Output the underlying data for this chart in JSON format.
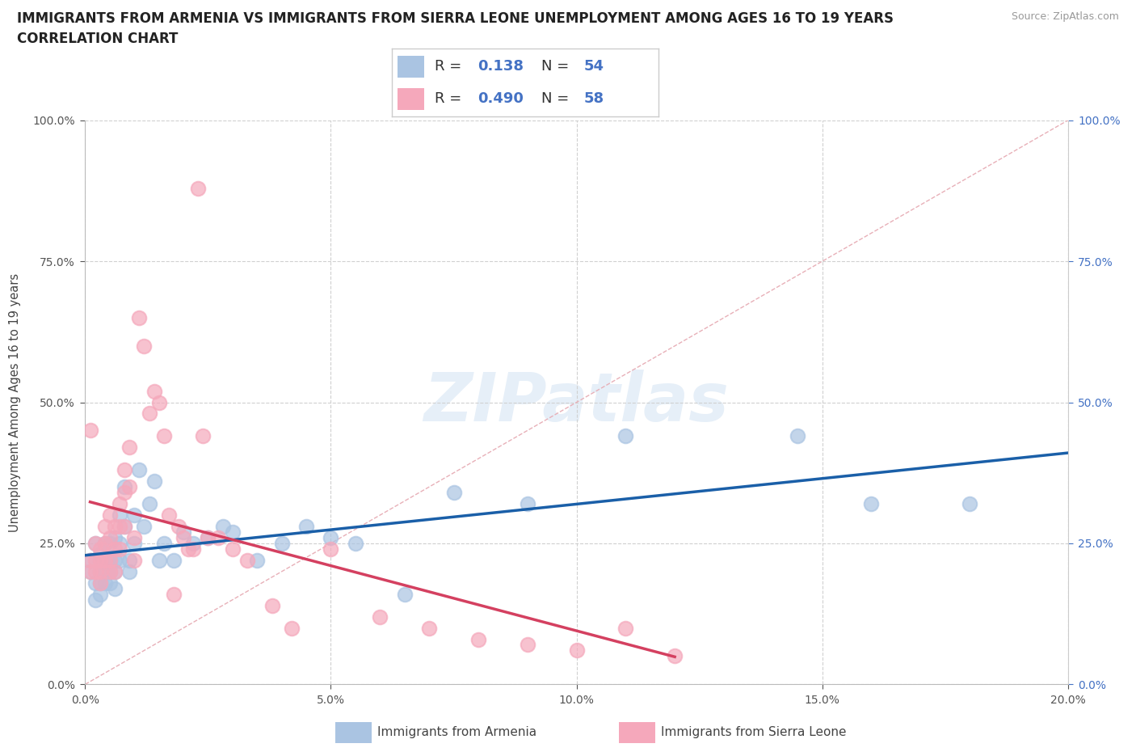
{
  "title_line1": "IMMIGRANTS FROM ARMENIA VS IMMIGRANTS FROM SIERRA LEONE UNEMPLOYMENT AMONG AGES 16 TO 19 YEARS",
  "title_line2": "CORRELATION CHART",
  "source_text": "Source: ZipAtlas.com",
  "ylabel": "Unemployment Among Ages 16 to 19 years",
  "xlim": [
    0.0,
    0.2
  ],
  "ylim": [
    0.0,
    1.0
  ],
  "xticks": [
    0.0,
    0.05,
    0.1,
    0.15,
    0.2
  ],
  "yticks": [
    0.0,
    0.25,
    0.5,
    0.75,
    1.0
  ],
  "armenia_color": "#aac4e2",
  "sierra_leone_color": "#f5a8bb",
  "armenia_trend_color": "#1a5fa8",
  "sierra_leone_trend_color": "#d44060",
  "diag_line_color": "#e8b0b8",
  "legend_label_armenia": "Immigrants from Armenia",
  "legend_label_sierra": "Immigrants from Sierra Leone",
  "R_armenia": "0.138",
  "N_armenia": "54",
  "R_sierra": "0.490",
  "N_sierra": "58",
  "watermark_text": "ZIPatlas",
  "armenia_x": [
    0.001,
    0.001,
    0.002,
    0.002,
    0.002,
    0.003,
    0.003,
    0.003,
    0.003,
    0.004,
    0.004,
    0.004,
    0.004,
    0.005,
    0.005,
    0.005,
    0.005,
    0.006,
    0.006,
    0.006,
    0.006,
    0.007,
    0.007,
    0.007,
    0.008,
    0.008,
    0.009,
    0.009,
    0.01,
    0.01,
    0.011,
    0.012,
    0.013,
    0.014,
    0.015,
    0.016,
    0.018,
    0.02,
    0.022,
    0.025,
    0.028,
    0.03,
    0.035,
    0.04,
    0.045,
    0.05,
    0.055,
    0.065,
    0.075,
    0.09,
    0.11,
    0.145,
    0.16,
    0.18
  ],
  "armenia_y": [
    0.2,
    0.22,
    0.18,
    0.25,
    0.15,
    0.2,
    0.23,
    0.18,
    0.16,
    0.22,
    0.25,
    0.2,
    0.18,
    0.25,
    0.22,
    0.18,
    0.2,
    0.26,
    0.22,
    0.2,
    0.17,
    0.3,
    0.25,
    0.22,
    0.28,
    0.35,
    0.22,
    0.2,
    0.3,
    0.25,
    0.38,
    0.28,
    0.32,
    0.36,
    0.22,
    0.25,
    0.22,
    0.27,
    0.25,
    0.26,
    0.28,
    0.27,
    0.22,
    0.25,
    0.28,
    0.26,
    0.25,
    0.16,
    0.34,
    0.32,
    0.44,
    0.44,
    0.32,
    0.32
  ],
  "sierra_x": [
    0.001,
    0.001,
    0.001,
    0.002,
    0.002,
    0.002,
    0.003,
    0.003,
    0.003,
    0.003,
    0.004,
    0.004,
    0.004,
    0.005,
    0.005,
    0.005,
    0.005,
    0.006,
    0.006,
    0.006,
    0.007,
    0.007,
    0.007,
    0.008,
    0.008,
    0.008,
    0.009,
    0.009,
    0.01,
    0.01,
    0.011,
    0.012,
    0.013,
    0.014,
    0.015,
    0.016,
    0.017,
    0.018,
    0.019,
    0.02,
    0.021,
    0.022,
    0.023,
    0.024,
    0.025,
    0.027,
    0.03,
    0.033,
    0.038,
    0.042,
    0.05,
    0.06,
    0.07,
    0.08,
    0.09,
    0.1,
    0.11,
    0.12
  ],
  "sierra_y": [
    0.22,
    0.45,
    0.2,
    0.25,
    0.22,
    0.2,
    0.24,
    0.22,
    0.2,
    0.18,
    0.28,
    0.25,
    0.22,
    0.3,
    0.26,
    0.22,
    0.2,
    0.28,
    0.24,
    0.2,
    0.32,
    0.28,
    0.24,
    0.38,
    0.34,
    0.28,
    0.42,
    0.35,
    0.26,
    0.22,
    0.65,
    0.6,
    0.48,
    0.52,
    0.5,
    0.44,
    0.3,
    0.16,
    0.28,
    0.26,
    0.24,
    0.24,
    0.88,
    0.44,
    0.26,
    0.26,
    0.24,
    0.22,
    0.14,
    0.1,
    0.24,
    0.12,
    0.1,
    0.08,
    0.07,
    0.06,
    0.1,
    0.05
  ]
}
